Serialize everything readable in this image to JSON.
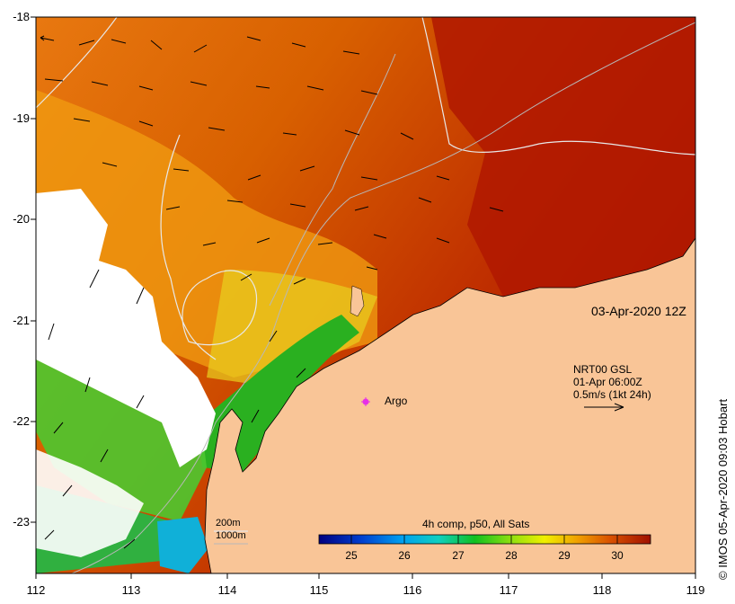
{
  "map": {
    "date_label": "03-Apr-2020 12Z",
    "legend": {
      "product": "NRT00 GSL",
      "time": "01-Apr 06:00Z",
      "scale": "0.5m/s (1kt 24h)"
    },
    "argo_label": "Argo",
    "contours": [
      "200m",
      "1000m"
    ],
    "credit": "© IMOS 05-Apr-2020 09:03 Hobart",
    "lat_ticks": [
      "-18",
      "-19",
      "-20",
      "-21",
      "-22",
      "-23"
    ],
    "lon_ticks": [
      "112",
      "113",
      "114",
      "115",
      "116",
      "117",
      "118",
      "119"
    ],
    "colorbar": {
      "title": "4h comp, p50, All Sats",
      "ticks": [
        "25",
        "26",
        "27",
        "28",
        "29",
        "30"
      ],
      "range": [
        24.5,
        30.6
      ]
    },
    "colors": {
      "land": "#f9c597",
      "argo": "#e630e6",
      "cloud": "#ffffff",
      "warm": "#a81400"
    }
  }
}
